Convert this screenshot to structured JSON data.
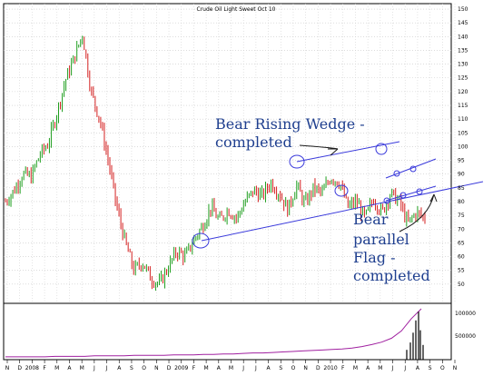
{
  "title": "Crude Oil Light Sweet Oct 10",
  "colors": {
    "up": "#1f9e1f",
    "down": "#d42020",
    "trend": "#3a3adb",
    "annotation": "#1f3f8f",
    "volume": "#a020a0",
    "volume_bars": "#000000"
  },
  "chart_data": [
    {
      "type": "candlestick",
      "title": "Crude Oil Light Sweet Oct 10",
      "x_ticks": [
        "N",
        "D",
        "2008",
        "F",
        "M",
        "A",
        "M",
        "J",
        "J",
        "A",
        "S",
        "O",
        "N",
        "D",
        "2009",
        "F",
        "M",
        "A",
        "M",
        "J",
        "J",
        "A",
        "S",
        "O",
        "N",
        "D",
        "2010",
        "F",
        "M",
        "A",
        "M",
        "J",
        "J",
        "A",
        "S",
        "O",
        "N"
      ],
      "y_ticks": [
        50,
        55,
        60,
        65,
        70,
        75,
        80,
        85,
        90,
        95,
        100,
        105,
        110,
        115,
        120,
        125,
        130,
        135,
        140,
        145,
        150
      ],
      "ylim": [
        43,
        152
      ],
      "grid": true,
      "series": [
        {
          "values": [
            [
              0,
              80
            ],
            [
              1,
              84
            ],
            [
              2,
              90
            ],
            [
              3,
              89
            ],
            [
              4,
              97
            ],
            [
              5,
              101
            ],
            [
              6,
              112
            ],
            [
              7,
              124
            ],
            [
              8,
              132
            ],
            [
              9,
              141
            ],
            [
              10,
              120
            ],
            [
              11,
              110
            ],
            [
              12,
              95
            ],
            [
              13,
              78
            ],
            [
              14,
              65
            ],
            [
              15,
              55
            ],
            [
              16,
              58
            ],
            [
              17,
              52
            ],
            [
              18,
              50
            ],
            [
              19,
              56
            ],
            [
              20,
              62
            ],
            [
              21,
              60
            ],
            [
              22,
              66
            ],
            [
              23,
              71
            ],
            [
              24,
              78
            ],
            [
              25,
              73
            ],
            [
              26,
              77
            ],
            [
              27,
              74
            ],
            [
              28,
              80
            ],
            [
              29,
              84
            ],
            [
              30,
              82
            ],
            [
              31,
              87
            ],
            [
              32,
              83
            ],
            [
              33,
              77
            ],
            [
              34,
              86
            ],
            [
              35,
              79
            ],
            [
              36,
              85
            ],
            [
              37,
              83
            ],
            [
              38,
              89
            ],
            [
              39,
              87
            ],
            [
              40,
              78
            ],
            [
              41,
              80
            ],
            [
              42,
              74
            ],
            [
              43,
              81
            ],
            [
              44,
              76
            ],
            [
              45,
              83
            ],
            [
              46,
              80
            ],
            [
              47,
              72
            ],
            [
              48,
              76
            ],
            [
              49,
              74
            ]
          ]
        }
      ],
      "annotations": [
        "Bear Rising Wedge -",
        "completed",
        "Bear",
        "parallel",
        "Flag -",
        "completed"
      ]
    },
    {
      "type": "bar",
      "name": "volume",
      "y_ticks": [
        "100000",
        "500000"
      ],
      "series": [
        {
          "values": [
            2,
            2,
            2,
            2,
            2,
            3,
            3,
            3,
            3,
            4,
            4,
            4,
            4,
            5,
            5,
            5,
            5,
            6,
            6,
            6,
            7,
            7,
            8,
            8,
            9,
            10,
            10,
            11,
            12,
            13,
            14,
            15,
            16,
            17,
            18,
            20,
            23,
            27,
            32,
            40,
            55,
            80,
            100
          ]
        }
      ]
    }
  ]
}
